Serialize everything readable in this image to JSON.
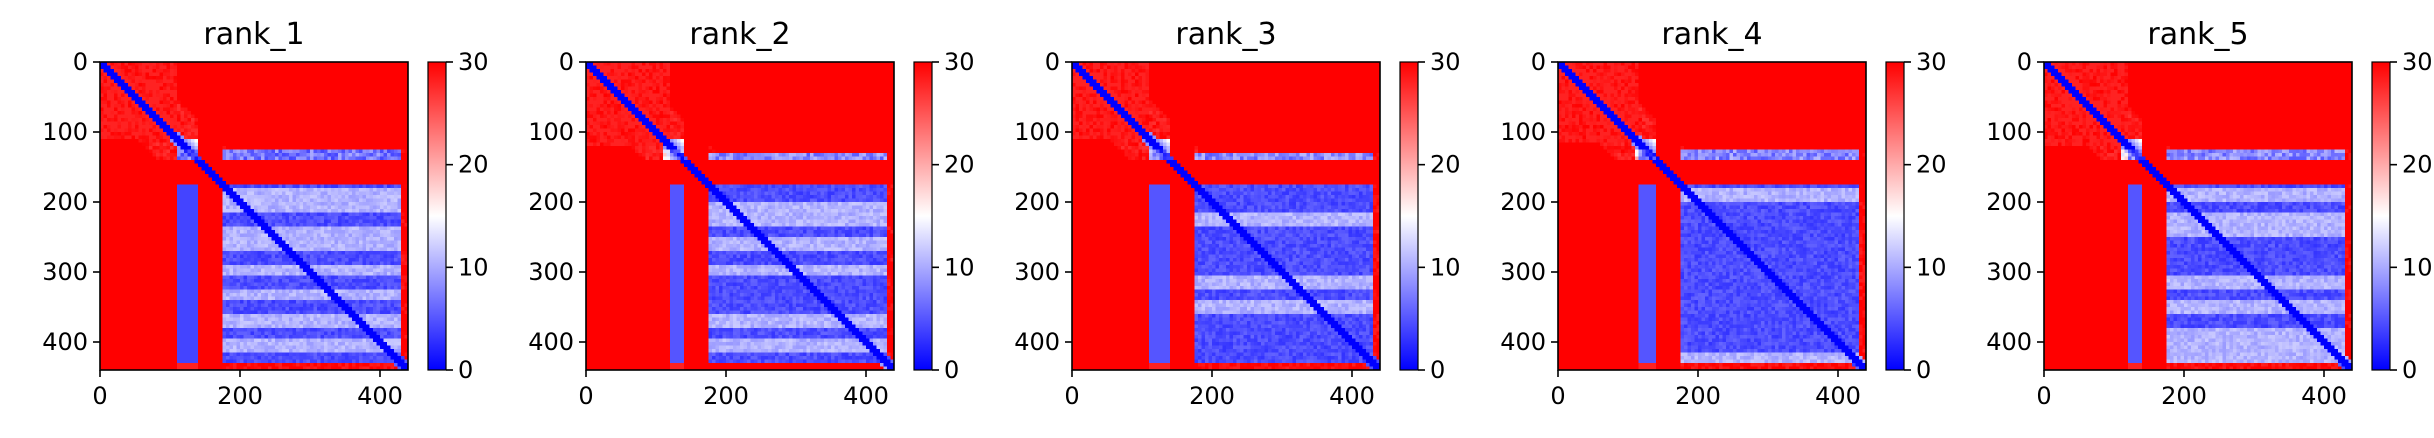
{
  "chart_data": [
    {
      "type": "heatmap",
      "title": "rank_1",
      "xlabel": "",
      "ylabel": "",
      "xlim": [
        0,
        440
      ],
      "ylim": [
        440,
        0
      ],
      "x_ticks": [
        0,
        200,
        400
      ],
      "y_ticks": [
        0,
        100,
        200,
        300,
        400
      ],
      "colorbar": {
        "range": [
          0,
          30
        ],
        "ticks": [
          0,
          10,
          20,
          30
        ],
        "colormap": "bwr"
      },
      "domain_boundaries": [
        110,
        170,
        125,
        140,
        150,
        175
      ],
      "blocks": [
        {
          "rows": [
            0,
            110
          ],
          "cols": [
            0,
            110
          ],
          "value": 28
        },
        {
          "rows": [
            175,
            440
          ],
          "cols": [
            175,
            440
          ],
          "value": 3
        },
        {
          "rows": [
            175,
            440
          ],
          "cols": [
            110,
            175
          ],
          "value": 4
        },
        {
          "rows": [
            125,
            140
          ],
          "cols": [
            110,
            440
          ],
          "value": 4
        },
        {
          "rows": [
            140,
            175
          ],
          "cols": [
            0,
            440
          ],
          "value": 30
        }
      ]
    },
    {
      "type": "heatmap",
      "title": "rank_2",
      "xlabel": "",
      "ylabel": "",
      "xlim": [
        0,
        440
      ],
      "ylim": [
        440,
        0
      ],
      "x_ticks": [
        0,
        200,
        400
      ],
      "y_ticks": [
        0,
        100,
        200,
        300,
        400
      ],
      "colorbar": {
        "range": [
          0,
          30
        ],
        "ticks": [
          0,
          10,
          20,
          30
        ],
        "colormap": "bwr"
      },
      "domain_boundaries": [
        120,
        170,
        130,
        140,
        150,
        175
      ],
      "blocks": [
        {
          "rows": [
            0,
            120
          ],
          "cols": [
            0,
            120
          ],
          "value": 28
        },
        {
          "rows": [
            175,
            440
          ],
          "cols": [
            175,
            440
          ],
          "value": 3
        },
        {
          "rows": [
            175,
            440
          ],
          "cols": [
            120,
            175
          ],
          "value": 5
        },
        {
          "rows": [
            130,
            140
          ],
          "cols": [
            120,
            440
          ],
          "value": 5
        },
        {
          "rows": [
            140,
            175
          ],
          "cols": [
            0,
            440
          ],
          "value": 30
        }
      ]
    },
    {
      "type": "heatmap",
      "title": "rank_3",
      "xlabel": "",
      "ylabel": "",
      "xlim": [
        0,
        440
      ],
      "ylim": [
        440,
        0
      ],
      "x_ticks": [
        0,
        200,
        400
      ],
      "y_ticks": [
        0,
        100,
        200,
        300,
        400
      ],
      "colorbar": {
        "range": [
          0,
          30
        ],
        "ticks": [
          0,
          10,
          20,
          30
        ],
        "colormap": "bwr"
      },
      "domain_boundaries": [
        110,
        170,
        130,
        140,
        150,
        175
      ],
      "blocks": [
        {
          "rows": [
            0,
            110
          ],
          "cols": [
            0,
            110
          ],
          "value": 28
        },
        {
          "rows": [
            175,
            440
          ],
          "cols": [
            175,
            440
          ],
          "value": 3
        },
        {
          "rows": [
            175,
            440
          ],
          "cols": [
            110,
            175
          ],
          "value": 5
        },
        {
          "rows": [
            130,
            140
          ],
          "cols": [
            110,
            440
          ],
          "value": 5
        },
        {
          "rows": [
            140,
            175
          ],
          "cols": [
            0,
            440
          ],
          "value": 30
        }
      ]
    },
    {
      "type": "heatmap",
      "title": "rank_4",
      "xlabel": "",
      "ylabel": "",
      "xlim": [
        0,
        440
      ],
      "ylim": [
        440,
        0
      ],
      "x_ticks": [
        0,
        200,
        400
      ],
      "y_ticks": [
        0,
        100,
        200,
        300,
        400
      ],
      "colorbar": {
        "range": [
          0,
          30
        ],
        "ticks": [
          0,
          10,
          20,
          30
        ],
        "colormap": "bwr"
      },
      "domain_boundaries": [
        115,
        170,
        125,
        140,
        150,
        175
      ],
      "blocks": [
        {
          "rows": [
            0,
            115
          ],
          "cols": [
            0,
            115
          ],
          "value": 28
        },
        {
          "rows": [
            175,
            440
          ],
          "cols": [
            175,
            440
          ],
          "value": 3
        },
        {
          "rows": [
            175,
            440
          ],
          "cols": [
            115,
            175
          ],
          "value": 5
        },
        {
          "rows": [
            125,
            140
          ],
          "cols": [
            115,
            440
          ],
          "value": 5
        },
        {
          "rows": [
            140,
            175
          ],
          "cols": [
            0,
            440
          ],
          "value": 30
        }
      ]
    },
    {
      "type": "heatmap",
      "title": "rank_5",
      "xlabel": "",
      "ylabel": "",
      "xlim": [
        0,
        440
      ],
      "ylim": [
        440,
        0
      ],
      "x_ticks": [
        0,
        200,
        400
      ],
      "y_ticks": [
        0,
        100,
        200,
        300,
        400
      ],
      "colorbar": {
        "range": [
          0,
          30
        ],
        "ticks": [
          0,
          10,
          20,
          30
        ],
        "colormap": "bwr"
      },
      "domain_boundaries": [
        120,
        170,
        125,
        140,
        150,
        175
      ],
      "blocks": [
        {
          "rows": [
            0,
            120
          ],
          "cols": [
            0,
            120
          ],
          "value": 28
        },
        {
          "rows": [
            175,
            440
          ],
          "cols": [
            175,
            440
          ],
          "value": 3
        },
        {
          "rows": [
            175,
            440
          ],
          "cols": [
            120,
            175
          ],
          "value": 5
        },
        {
          "rows": [
            125,
            140
          ],
          "cols": [
            120,
            440
          ],
          "value": 5
        },
        {
          "rows": [
            140,
            175
          ],
          "cols": [
            0,
            440
          ],
          "value": 30
        }
      ]
    }
  ]
}
